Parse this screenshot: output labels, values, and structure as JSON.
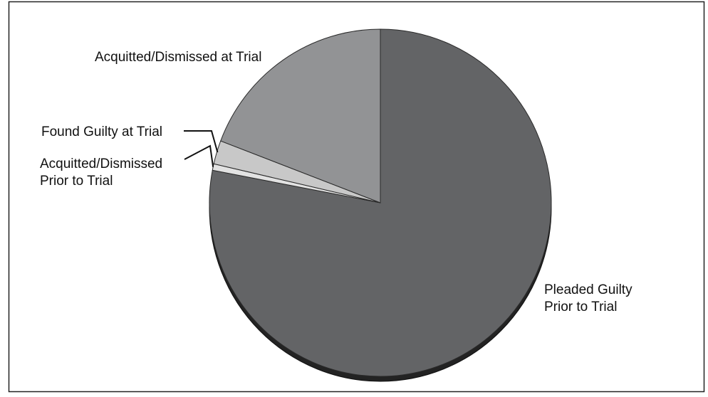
{
  "chart_data": {
    "type": "pie",
    "title": "",
    "start_angle_deg": 0,
    "direction": "clockwise",
    "slices": [
      {
        "label": "Pleaded Guilty Prior to Trial",
        "label_lines": [
          "Pleaded Guilty",
          "Prior to Trial"
        ],
        "value": 78.0,
        "color": "#636466"
      },
      {
        "label": "Acquitted/Dismissed Prior to Trial",
        "label_lines": [
          "Acquitted/Dismissed",
          "Prior to Trial"
        ],
        "value": 0.6,
        "color": "#e2e2e2"
      },
      {
        "label": "Found Guilty at Trial",
        "label_lines": [
          "Found Guilty at Trial"
        ],
        "value": 2.2,
        "color": "#c8c8c8"
      },
      {
        "label": "Acquitted/Dismissed at Trial",
        "label_lines": [
          "Acquitted/Dismissed at Trial"
        ],
        "value": 19.2,
        "color": "#929395"
      }
    ],
    "depth_color": "#232323",
    "legend": "none"
  }
}
